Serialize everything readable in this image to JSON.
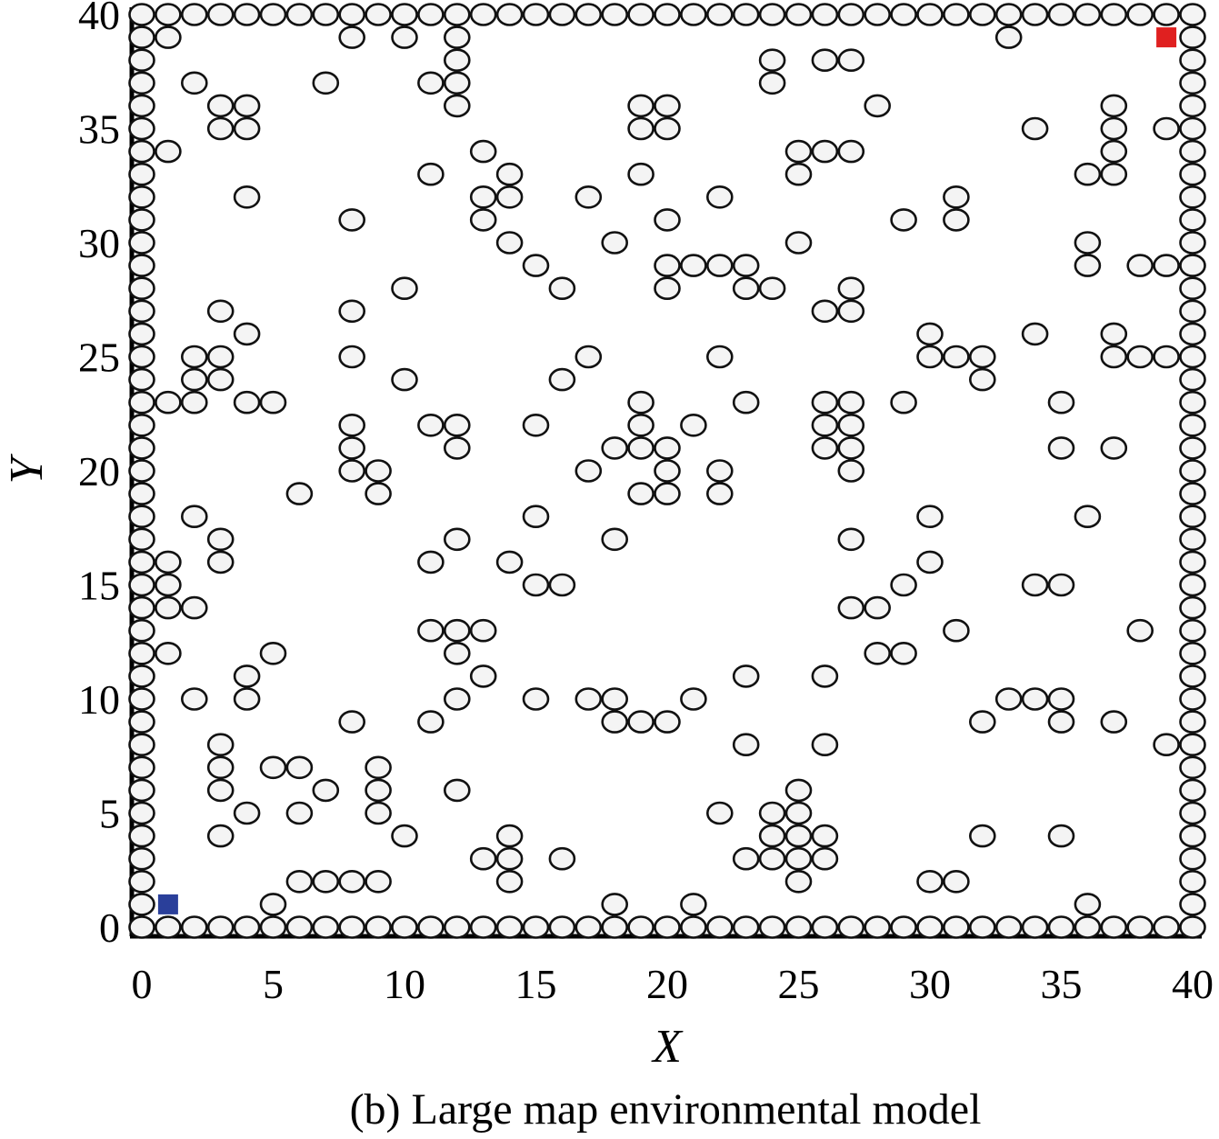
{
  "caption": "(b) Large map environmental model",
  "chart_data": {
    "type": "scatter",
    "xlabel": "X",
    "ylabel": "Y",
    "xlim": [
      0,
      40
    ],
    "ylim": [
      0,
      40
    ],
    "xticks": [
      0,
      5,
      10,
      15,
      20,
      25,
      30,
      35,
      40
    ],
    "yticks": [
      0,
      5,
      10,
      15,
      20,
      25,
      30,
      35,
      40
    ],
    "grid": false,
    "colors": {
      "obstacle_fill": "#f4f4f4",
      "obstacle_stroke": "#111111",
      "start": "#2a3f9a",
      "goal": "#e02020"
    },
    "start": [
      1,
      1
    ],
    "goal": [
      39,
      39
    ],
    "border": {
      "min": 0,
      "max": 40
    },
    "obstacles": [
      [
        1,
        39
      ],
      [
        8,
        39
      ],
      [
        10,
        39
      ],
      [
        12,
        39
      ],
      [
        33,
        39
      ],
      [
        12,
        38
      ],
      [
        24,
        38
      ],
      [
        26,
        38
      ],
      [
        27,
        38
      ],
      [
        2,
        37
      ],
      [
        7,
        37
      ],
      [
        11,
        37
      ],
      [
        12,
        37
      ],
      [
        24,
        37
      ],
      [
        3,
        36
      ],
      [
        4,
        36
      ],
      [
        12,
        36
      ],
      [
        19,
        36
      ],
      [
        20,
        36
      ],
      [
        28,
        36
      ],
      [
        37,
        36
      ],
      [
        3,
        35
      ],
      [
        4,
        35
      ],
      [
        19,
        35
      ],
      [
        20,
        35
      ],
      [
        34,
        35
      ],
      [
        37,
        35
      ],
      [
        39,
        35
      ],
      [
        1,
        34
      ],
      [
        13,
        34
      ],
      [
        25,
        34
      ],
      [
        26,
        34
      ],
      [
        27,
        34
      ],
      [
        37,
        34
      ],
      [
        11,
        33
      ],
      [
        14,
        33
      ],
      [
        19,
        33
      ],
      [
        25,
        33
      ],
      [
        36,
        33
      ],
      [
        37,
        33
      ],
      [
        4,
        32
      ],
      [
        13,
        32
      ],
      [
        14,
        32
      ],
      [
        17,
        32
      ],
      [
        22,
        32
      ],
      [
        31,
        32
      ],
      [
        8,
        31
      ],
      [
        13,
        31
      ],
      [
        20,
        31
      ],
      [
        29,
        31
      ],
      [
        31,
        31
      ],
      [
        14,
        30
      ],
      [
        18,
        30
      ],
      [
        25,
        30
      ],
      [
        36,
        30
      ],
      [
        15,
        29
      ],
      [
        20,
        29
      ],
      [
        21,
        29
      ],
      [
        22,
        29
      ],
      [
        23,
        29
      ],
      [
        36,
        29
      ],
      [
        38,
        29
      ],
      [
        39,
        29
      ],
      [
        10,
        28
      ],
      [
        16,
        28
      ],
      [
        20,
        28
      ],
      [
        23,
        28
      ],
      [
        24,
        28
      ],
      [
        27,
        28
      ],
      [
        3,
        27
      ],
      [
        8,
        27
      ],
      [
        26,
        27
      ],
      [
        27,
        27
      ],
      [
        4,
        26
      ],
      [
        30,
        26
      ],
      [
        34,
        26
      ],
      [
        37,
        26
      ],
      [
        2,
        25
      ],
      [
        3,
        25
      ],
      [
        8,
        25
      ],
      [
        17,
        25
      ],
      [
        22,
        25
      ],
      [
        30,
        25
      ],
      [
        31,
        25
      ],
      [
        32,
        25
      ],
      [
        37,
        25
      ],
      [
        38,
        25
      ],
      [
        39,
        25
      ],
      [
        2,
        24
      ],
      [
        3,
        24
      ],
      [
        10,
        24
      ],
      [
        16,
        24
      ],
      [
        32,
        24
      ],
      [
        1,
        23
      ],
      [
        2,
        23
      ],
      [
        4,
        23
      ],
      [
        5,
        23
      ],
      [
        19,
        23
      ],
      [
        23,
        23
      ],
      [
        26,
        23
      ],
      [
        27,
        23
      ],
      [
        29,
        23
      ],
      [
        35,
        23
      ],
      [
        8,
        22
      ],
      [
        11,
        22
      ],
      [
        12,
        22
      ],
      [
        15,
        22
      ],
      [
        19,
        22
      ],
      [
        21,
        22
      ],
      [
        26,
        22
      ],
      [
        27,
        22
      ],
      [
        8,
        21
      ],
      [
        12,
        21
      ],
      [
        18,
        21
      ],
      [
        19,
        21
      ],
      [
        20,
        21
      ],
      [
        26,
        21
      ],
      [
        27,
        21
      ],
      [
        35,
        21
      ],
      [
        37,
        21
      ],
      [
        8,
        20
      ],
      [
        9,
        20
      ],
      [
        17,
        20
      ],
      [
        20,
        20
      ],
      [
        22,
        20
      ],
      [
        27,
        20
      ],
      [
        6,
        19
      ],
      [
        9,
        19
      ],
      [
        19,
        19
      ],
      [
        20,
        19
      ],
      [
        22,
        19
      ],
      [
        2,
        18
      ],
      [
        15,
        18
      ],
      [
        30,
        18
      ],
      [
        36,
        18
      ],
      [
        3,
        17
      ],
      [
        12,
        17
      ],
      [
        18,
        17
      ],
      [
        27,
        17
      ],
      [
        1,
        16
      ],
      [
        3,
        16
      ],
      [
        11,
        16
      ],
      [
        14,
        16
      ],
      [
        30,
        16
      ],
      [
        1,
        15
      ],
      [
        15,
        15
      ],
      [
        16,
        15
      ],
      [
        29,
        15
      ],
      [
        34,
        15
      ],
      [
        35,
        15
      ],
      [
        1,
        14
      ],
      [
        2,
        14
      ],
      [
        27,
        14
      ],
      [
        28,
        14
      ],
      [
        11,
        13
      ],
      [
        12,
        13
      ],
      [
        13,
        13
      ],
      [
        31,
        13
      ],
      [
        38,
        13
      ],
      [
        1,
        12
      ],
      [
        5,
        12
      ],
      [
        12,
        12
      ],
      [
        28,
        12
      ],
      [
        29,
        12
      ],
      [
        4,
        11
      ],
      [
        13,
        11
      ],
      [
        23,
        11
      ],
      [
        26,
        11
      ],
      [
        2,
        10
      ],
      [
        4,
        10
      ],
      [
        12,
        10
      ],
      [
        15,
        10
      ],
      [
        17,
        10
      ],
      [
        18,
        10
      ],
      [
        21,
        10
      ],
      [
        33,
        10
      ],
      [
        34,
        10
      ],
      [
        35,
        10
      ],
      [
        8,
        9
      ],
      [
        11,
        9
      ],
      [
        18,
        9
      ],
      [
        19,
        9
      ],
      [
        20,
        9
      ],
      [
        32,
        9
      ],
      [
        35,
        9
      ],
      [
        37,
        9
      ],
      [
        3,
        8
      ],
      [
        23,
        8
      ],
      [
        26,
        8
      ],
      [
        39,
        8
      ],
      [
        3,
        7
      ],
      [
        5,
        7
      ],
      [
        6,
        7
      ],
      [
        9,
        7
      ],
      [
        3,
        6
      ],
      [
        7,
        6
      ],
      [
        9,
        6
      ],
      [
        12,
        6
      ],
      [
        25,
        6
      ],
      [
        4,
        5
      ],
      [
        6,
        5
      ],
      [
        9,
        5
      ],
      [
        22,
        5
      ],
      [
        24,
        5
      ],
      [
        25,
        5
      ],
      [
        3,
        4
      ],
      [
        10,
        4
      ],
      [
        14,
        4
      ],
      [
        24,
        4
      ],
      [
        25,
        4
      ],
      [
        26,
        4
      ],
      [
        32,
        4
      ],
      [
        35,
        4
      ],
      [
        13,
        3
      ],
      [
        14,
        3
      ],
      [
        16,
        3
      ],
      [
        23,
        3
      ],
      [
        24,
        3
      ],
      [
        25,
        3
      ],
      [
        26,
        3
      ],
      [
        6,
        2
      ],
      [
        7,
        2
      ],
      [
        8,
        2
      ],
      [
        9,
        2
      ],
      [
        14,
        2
      ],
      [
        25,
        2
      ],
      [
        30,
        2
      ],
      [
        31,
        2
      ],
      [
        5,
        1
      ],
      [
        18,
        1
      ],
      [
        21,
        1
      ],
      [
        36,
        1
      ]
    ]
  }
}
